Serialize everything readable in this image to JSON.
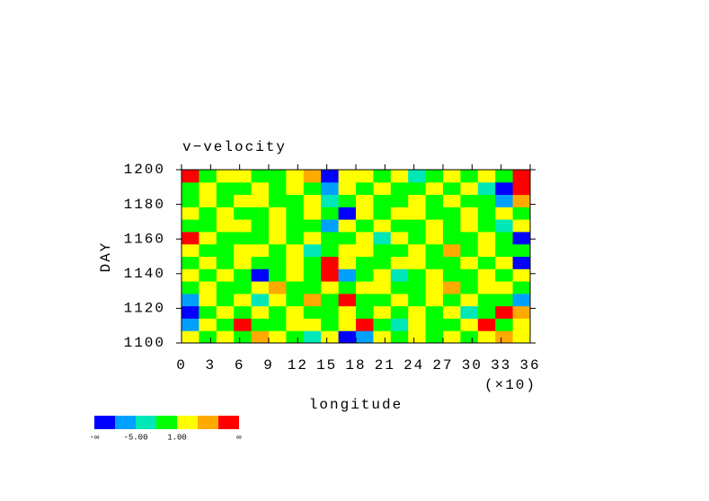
{
  "chart_data": {
    "type": "contour",
    "title": "v−velocity",
    "x_label": "longitude",
    "x_scale_label": "(×10)",
    "y_label": "DAY",
    "xlim": [
      0,
      36
    ],
    "xticks": [
      0,
      3,
      6,
      9,
      12,
      15,
      18,
      21,
      24,
      27,
      30,
      33,
      36
    ],
    "ylim": [
      1100,
      1200
    ],
    "yticks": [
      1100,
      1120,
      1140,
      1160,
      1180,
      1200
    ],
    "levels": [
      -8,
      -5,
      -2,
      1,
      4,
      7
    ],
    "colorbar": {
      "colors": [
        "#0000ff",
        "#00a0ff",
        "#00e8b8",
        "#00ff00",
        "#ffff00",
        "#ffaa00",
        "#ff0000"
      ],
      "ticks": [
        {
          "edge": 0,
          "label": "-∞"
        },
        {
          "edge": 2,
          "value": -5,
          "label": "-5.00"
        },
        {
          "edge": 4,
          "value": 1,
          "label": "1.00"
        },
        {
          "edge": 7,
          "label": "∞"
        }
      ]
    },
    "z": [
      [
        2,
        0,
        3,
        -1,
        5,
        2,
        0,
        -3,
        2,
        -9,
        -6,
        2,
        0,
        3,
        -1,
        2,
        0,
        3,
        5,
        2
      ],
      [
        -6,
        2,
        0,
        8,
        0,
        -1,
        3,
        2,
        0,
        2,
        8,
        0,
        -3,
        2,
        0,
        -1,
        2,
        8,
        0,
        3
      ],
      [
        -9,
        0,
        2,
        -1,
        3,
        0,
        2,
        -1,
        0,
        3,
        0,
        2,
        -1,
        3,
        0,
        2,
        -3,
        0,
        8,
        5
      ],
      [
        -6,
        3,
        0,
        2,
        -3,
        2,
        0,
        5,
        -1,
        8,
        0,
        -1,
        2,
        0,
        3,
        0,
        2,
        -1,
        0,
        -6
      ],
      [
        0,
        2,
        -1,
        0,
        2,
        5,
        -1,
        0,
        3,
        0,
        2,
        3,
        0,
        -1,
        2,
        5,
        0,
        3,
        2,
        0
      ],
      [
        2,
        -1,
        3,
        0,
        -9,
        0,
        2,
        -1,
        8,
        -6,
        0,
        2,
        -3,
        0,
        2,
        0,
        -1,
        2,
        0,
        3
      ],
      [
        0,
        3,
        0,
        2,
        0,
        -1,
        3,
        0,
        8,
        2,
        -1,
        0,
        2,
        3,
        0,
        -1,
        2,
        0,
        3,
        -9
      ],
      [
        3,
        0,
        -1,
        2,
        3,
        0,
        2,
        -3,
        0,
        2,
        3,
        0,
        -1,
        2,
        0,
        5,
        0,
        2,
        -1,
        0
      ],
      [
        8,
        2,
        0,
        -1,
        0,
        3,
        0,
        2,
        -1,
        0,
        2,
        -3,
        3,
        0,
        2,
        0,
        -1,
        3,
        0,
        -9
      ],
      [
        0,
        -1,
        2,
        3,
        0,
        2,
        -1,
        0,
        -6,
        2,
        0,
        2,
        0,
        -1,
        3,
        0,
        2,
        0,
        -3,
        2
      ],
      [
        2,
        0,
        3,
        0,
        -1,
        2,
        0,
        3,
        0,
        -9,
        2,
        0,
        3,
        2,
        0,
        -1,
        2,
        0,
        2,
        0
      ],
      [
        -1,
        2,
        0,
        2,
        3,
        0,
        -1,
        2,
        -3,
        0,
        3,
        -1,
        0,
        2,
        0,
        3,
        0,
        -1,
        -6,
        5
      ],
      [
        0,
        3,
        -1,
        0,
        2,
        0,
        3,
        0,
        -6,
        2,
        0,
        2,
        -1,
        0,
        3,
        0,
        2,
        -3,
        -9,
        8
      ],
      [
        8,
        0,
        2,
        3,
        0,
        -1,
        2,
        5,
        -9,
        2,
        3,
        0,
        2,
        -3,
        0,
        2,
        -1,
        2,
        0,
        8
      ]
    ]
  }
}
